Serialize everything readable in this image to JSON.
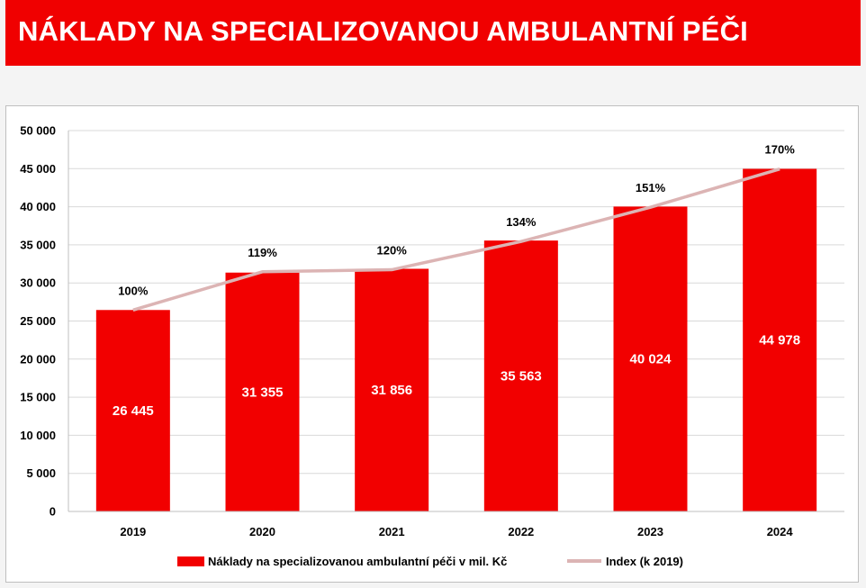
{
  "header": {
    "title": "NÁKLADY NA SPECIALIZOVANOU AMBULANTNÍ PÉČI",
    "background": "#f00000"
  },
  "chart_data": {
    "type": "bar",
    "categories": [
      "2019",
      "2020",
      "2021",
      "2022",
      "2023",
      "2024"
    ],
    "series": [
      {
        "name": "Náklady na specializovanou ambulantní péči v mil. Kč",
        "type": "bar",
        "color": "#f20000",
        "values": [
          26445,
          31355,
          31856,
          35563,
          40024,
          44978
        ],
        "labels": [
          "26 445",
          "31 355",
          "31 856",
          "35 563",
          "40 024",
          "44 978"
        ]
      },
      {
        "name": "Index (k 2019)",
        "type": "line",
        "color": "#dcb4b4",
        "values": [
          100,
          119,
          120,
          134,
          151,
          170
        ],
        "labels": [
          "100%",
          "119%",
          "120%",
          "134%",
          "151%",
          "170%"
        ]
      }
    ],
    "ylim": [
      0,
      50000
    ],
    "yticks": [
      0,
      5000,
      10000,
      15000,
      20000,
      25000,
      30000,
      35000,
      40000,
      45000,
      50000
    ],
    "ytick_labels": [
      "0",
      "5 000",
      "10 000",
      "15 000",
      "20 000",
      "25 000",
      "30 000",
      "35 000",
      "40 000",
      "45 000",
      "50 000"
    ],
    "grid": true,
    "legend_position": "bottom"
  }
}
